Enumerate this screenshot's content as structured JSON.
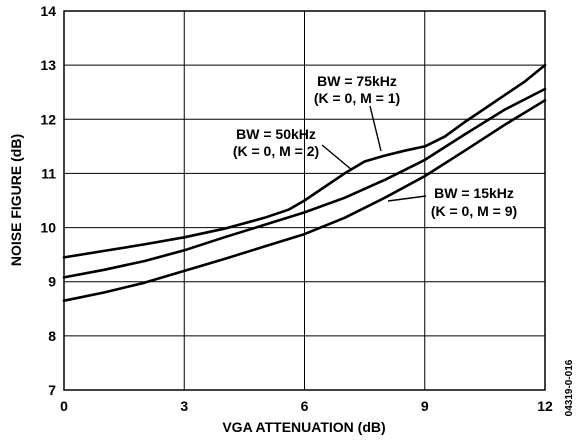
{
  "chart_data": {
    "type": "line",
    "xlabel": "VGA ATTENUATION (dB)",
    "ylabel": "NOISE FIGURE (dB)",
    "xlim": [
      0,
      12
    ],
    "ylim": [
      7,
      14
    ],
    "xticks": [
      "0",
      "3",
      "6",
      "9",
      "12"
    ],
    "yticks": [
      "7",
      "8",
      "9",
      "10",
      "11",
      "12",
      "13",
      "14"
    ],
    "grid": true,
    "figure_code": "04319-0-016",
    "series": [
      {
        "name": "BW = 75kHz",
        "x": [
          0,
          1,
          2,
          3,
          4,
          5,
          5.6,
          6,
          6.5,
          7,
          7.5,
          8,
          8.5,
          9,
          9.5,
          10,
          10.5,
          11,
          11.5,
          12
        ],
        "y": [
          9.45,
          9.57,
          9.69,
          9.82,
          9.98,
          10.18,
          10.33,
          10.5,
          10.75,
          11.0,
          11.22,
          11.33,
          11.42,
          11.5,
          11.68,
          11.95,
          12.2,
          12.45,
          12.7,
          13.0
        ]
      },
      {
        "name": "BW = 50kHz",
        "x": [
          0,
          1,
          2,
          3,
          4,
          5,
          6,
          7,
          8,
          9,
          10,
          11,
          12
        ],
        "y": [
          9.08,
          9.22,
          9.38,
          9.58,
          9.82,
          10.05,
          10.28,
          10.55,
          10.88,
          11.25,
          11.72,
          12.18,
          12.56
        ]
      },
      {
        "name": "BW = 15kHz",
        "x": [
          0,
          1,
          2,
          3,
          4,
          5,
          6,
          7,
          8,
          9,
          10,
          11,
          12
        ],
        "y": [
          8.65,
          8.8,
          8.98,
          9.2,
          9.42,
          9.65,
          9.88,
          10.18,
          10.55,
          10.95,
          11.42,
          11.9,
          12.35
        ]
      }
    ],
    "annotations": [
      {
        "line1": "BW = 75kHz",
        "line2": "(K = 0, M = 1)"
      },
      {
        "line1": "BW = 50kHz",
        "line2": "(K = 0, M = 2)"
      },
      {
        "line1": "BW = 15kHz",
        "line2": "(K = 0, M = 9)"
      }
    ]
  }
}
